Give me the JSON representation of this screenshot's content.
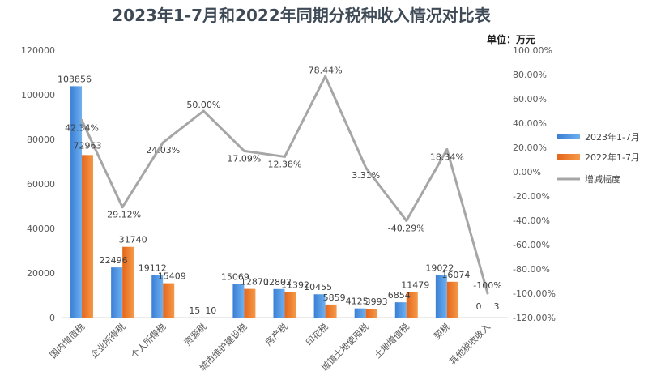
{
  "chart_data": {
    "type": "bar",
    "title": "2023年1-7月和2022年同期分税种收入情况对比表",
    "unit_label": "单位：万元",
    "categories": [
      "国内增值税",
      "企业所得税",
      "个人所得税",
      "资源税",
      "城市维护建设税",
      "房产税",
      "印花税",
      "城镇土地使用税",
      "土地增值税",
      "契税",
      "其他税收收入"
    ],
    "series": [
      {
        "name": "2023年1-7月",
        "type": "bar",
        "axis": "left",
        "color": "#4a90e2",
        "values": [
          103856,
          22496,
          19112,
          15,
          15069,
          12802,
          10455,
          4125,
          6854,
          19022,
          0
        ]
      },
      {
        "name": "2022年1-7月",
        "type": "bar",
        "axis": "left",
        "color": "#f07a2a",
        "values": [
          72963,
          31740,
          15409,
          10,
          12870,
          11392,
          5859,
          3993,
          11479,
          16074,
          3
        ]
      },
      {
        "name": "增减幅度",
        "type": "line",
        "axis": "right",
        "color": "#a6a6a6",
        "values": [
          42.34,
          -29.12,
          24.03,
          50.0,
          17.09,
          12.38,
          78.44,
          3.31,
          -40.29,
          18.34,
          -100.0
        ]
      }
    ],
    "bar_labels": [
      [
        "103856",
        "22496",
        "19112",
        "15",
        "15069",
        "12802",
        "10455",
        "4125",
        "6854",
        "19022",
        "0"
      ],
      [
        "72963",
        "31740",
        "15409",
        "10",
        "12870",
        "11392",
        "5859",
        "3993",
        "11479",
        "16074",
        "3"
      ]
    ],
    "line_labels": [
      "42.34%",
      "-29.12%",
      "24.03%",
      "50.00%",
      "17.09%",
      "12.38%",
      "78.44%",
      "3.31%",
      "-40.29%",
      "18.34%",
      "-100%"
    ],
    "left_axis": {
      "min": 0,
      "max": 120000,
      "ticks": [
        "0",
        "20000",
        "40000",
        "60000",
        "80000",
        "100000",
        "120000"
      ]
    },
    "right_axis": {
      "min": -120,
      "max": 100,
      "ticks": [
        "100.00%",
        "80.00%",
        "60.00%",
        "40.00%",
        "20.00%",
        "0.00%",
        "-20.00%",
        "-40.00%",
        "-60.00%",
        "-80.00%",
        "-100.00%",
        "-120.00%"
      ]
    },
    "grid": false,
    "legend_position": "right"
  }
}
